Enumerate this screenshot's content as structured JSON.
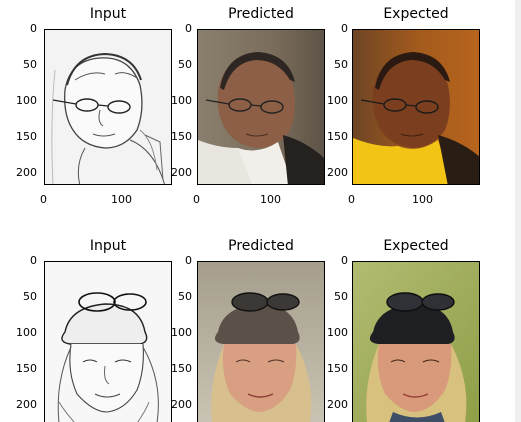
{
  "rows": [
    {
      "panels": [
        {
          "title": "Input",
          "yticks": [
            "0",
            "50",
            "100",
            "150",
            "200"
          ],
          "xticks": [
            "0",
            "100"
          ],
          "image": "sketch-elderly-man-with-glasses"
        },
        {
          "title": "Predicted",
          "yticks": [
            "0",
            "50",
            "100",
            "150",
            "200"
          ],
          "xticks": [
            "0",
            "100"
          ],
          "image": "predicted-color-elderly-man"
        },
        {
          "title": "Expected",
          "yticks": [
            "0",
            "50",
            "100",
            "150",
            "200"
          ],
          "xticks": [
            "0",
            "100"
          ],
          "image": "photo-elderly-man-yellow-shirt"
        }
      ]
    },
    {
      "panels": [
        {
          "title": "Input",
          "yticks": [
            "0",
            "50",
            "100",
            "150",
            "200"
          ],
          "xticks": [],
          "image": "sketch-woman-with-cap"
        },
        {
          "title": "Predicted",
          "yticks": [
            "0",
            "50",
            "100",
            "150",
            "200"
          ],
          "xticks": [],
          "image": "predicted-color-woman-with-cap"
        },
        {
          "title": "Expected",
          "yticks": [
            "0",
            "50",
            "100",
            "150",
            "200"
          ],
          "xticks": [],
          "image": "photo-woman-with-cap"
        }
      ]
    }
  ],
  "colors": {
    "man_expected_bg": "#a35a1c",
    "man_expected_shirt": "#f2c415",
    "man_predicted_bg": "#7c6a52",
    "woman_expected_bg": "#9fae55",
    "woman_predicted_bg": "#b9b2a2"
  }
}
